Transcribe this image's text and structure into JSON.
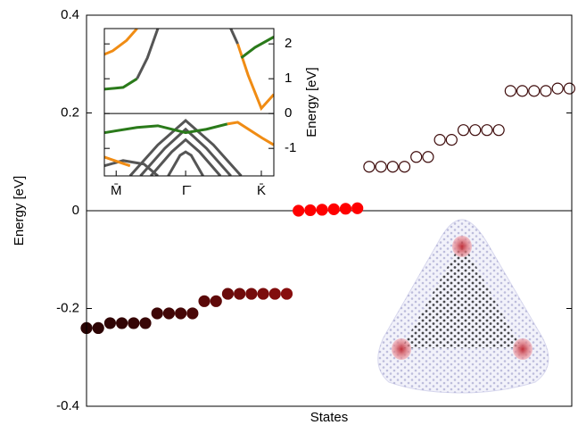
{
  "chart_data": [
    {
      "type": "scatter",
      "y_label": "Energy [eV]",
      "x_label": "States",
      "xlim": [
        1,
        42.2
      ],
      "ylim": [
        -0.4,
        0.4
      ],
      "yticks": [
        -0.4,
        -0.2,
        0,
        0.2,
        0.4
      ],
      "zero_line": true,
      "series": [
        {
          "x": [
            1,
            2,
            3,
            4,
            5,
            6,
            7,
            8,
            9,
            10,
            11,
            12,
            13,
            14,
            15,
            16,
            17,
            18,
            19,
            20,
            21,
            22,
            23,
            24
          ],
          "values": [
            -0.24,
            -0.24,
            -0.23,
            -0.23,
            -0.23,
            -0.23,
            -0.21,
            -0.21,
            -0.21,
            -0.21,
            -0.185,
            -0.185,
            -0.17,
            -0.17,
            -0.17,
            -0.17,
            -0.17,
            -0.17,
            0.0,
            0.001,
            0.002,
            0.003,
            0.004,
            0.005
          ],
          "colors": [
            "#2a0404",
            "#2d0404",
            "#300505",
            "#330505",
            "#360505",
            "#390606",
            "#3e0606",
            "#420707",
            "#460707",
            "#4a0808",
            "#5a0909",
            "#600a0a",
            "#6a0b0b",
            "#700c0c",
            "#760c0c",
            "#7c0d0d",
            "#820d0d",
            "#880e0e",
            "#ff0000",
            "#ff0000",
            "#ff0000",
            "#ff0000",
            "#ff0000",
            "#ff0000"
          ],
          "filled": true
        },
        {
          "x": [
            25,
            26,
            27,
            28,
            29,
            30,
            31,
            32,
            33,
            34,
            35,
            36,
            37,
            38,
            39,
            40,
            41,
            42
          ],
          "values": [
            0.09,
            0.09,
            0.09,
            0.09,
            0.11,
            0.11,
            0.145,
            0.145,
            0.165,
            0.165,
            0.165,
            0.165,
            0.245,
            0.245,
            0.245,
            0.245,
            0.25,
            0.25
          ],
          "color": "#3d0a0a",
          "filled": false
        }
      ]
    },
    {
      "type": "line",
      "y_label": "Energy [eV]",
      "xlim": [
        -0.17,
        2.27
      ],
      "ylim": [
        -1.79,
        2.44
      ],
      "xticks": [
        {
          "value": 0,
          "label": "M̄"
        },
        {
          "value": 1,
          "label": "Γ̄"
        },
        {
          "value": 2.09,
          "label": "K̄"
        }
      ],
      "yticks": [
        -1,
        0,
        1,
        2
      ],
      "zero_line": true,
      "series": [
        {
          "color": "#555555",
          "x": [
            0.2,
            0.6,
            1,
            1.4,
            1.8
          ],
          "values": [
            -1.79,
            -0.9,
            -0.2,
            -0.9,
            -1.79
          ]
        },
        {
          "color": "#555555",
          "x": [
            0.35,
            0.7,
            1,
            1.3,
            1.65
          ],
          "values": [
            -1.79,
            -1.0,
            -0.45,
            -1.0,
            -1.79
          ]
        },
        {
          "color": "#555555",
          "x": [
            0.5,
            0.8,
            1,
            1.2,
            1.5
          ],
          "values": [
            -1.79,
            -1.1,
            -0.75,
            -1.1,
            -1.79
          ]
        },
        {
          "color": "#555555",
          "x": [
            0.75,
            0.92,
            1,
            1.08,
            1.25
          ],
          "values": [
            -1.79,
            -1.2,
            -1.1,
            -1.2,
            -1.79
          ]
        },
        {
          "color": "#555555",
          "x": [
            -0.17,
            0.1,
            0.4,
            0.6
          ],
          "values": [
            -1.5,
            -1.35,
            -1.45,
            -1.79
          ]
        },
        {
          "color": "#2a7a1a",
          "x": [
            -0.17,
            0.3,
            0.6,
            1,
            1.3,
            1.6
          ],
          "values": [
            -0.55,
            -0.4,
            -0.35,
            -0.55,
            -0.45,
            -0.3
          ]
        },
        {
          "color": "#f08c14",
          "x": [
            1.6,
            1.75,
            2.1,
            2.27
          ],
          "values": [
            -0.3,
            -0.25,
            -0.7,
            -0.9
          ]
        },
        {
          "color": "#f08c14",
          "x": [
            -0.17,
            0.05,
            0.2
          ],
          "values": [
            -1.25,
            -1.4,
            -1.5
          ]
        },
        {
          "color": "#2a7a1a",
          "x": [
            -0.17,
            0.1,
            0.3
          ],
          "values": [
            0.7,
            0.75,
            1.0
          ]
        },
        {
          "color": "#555555",
          "x": [
            0.3,
            0.45,
            0.6
          ],
          "values": [
            1.0,
            1.6,
            2.44
          ]
        },
        {
          "color": "#f08c14",
          "x": [
            0.3,
            0.15,
            -0.05,
            -0.17
          ],
          "values": [
            2.44,
            2.1,
            1.8,
            1.7
          ]
        },
        {
          "color": "#555555",
          "x": [
            1.65,
            1.75
          ],
          "values": [
            2.44,
            2.0
          ]
        },
        {
          "color": "#f08c14",
          "x": [
            1.75,
            1.9,
            2.09,
            2.27
          ],
          "values": [
            2.0,
            1.1,
            0.15,
            0.55
          ]
        },
        {
          "color": "#2a7a1a",
          "x": [
            1.8,
            2.0,
            2.27
          ],
          "values": [
            1.6,
            1.9,
            2.2
          ]
        }
      ]
    }
  ]
}
